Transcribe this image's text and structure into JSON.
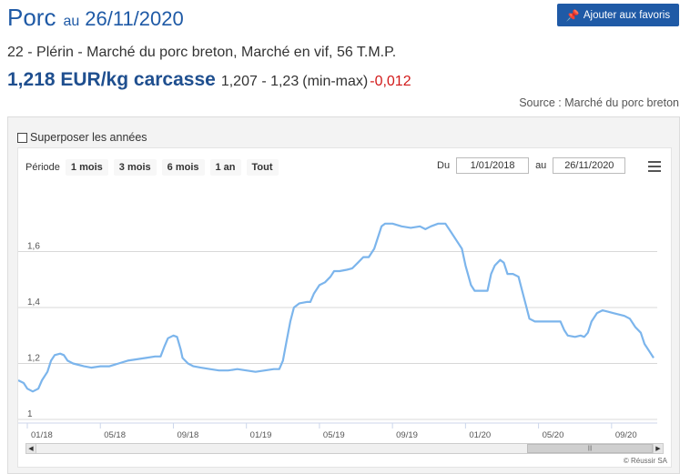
{
  "header": {
    "title": "Porc",
    "au": "au",
    "date": "26/11/2020",
    "fav_label": "Ajouter aux favoris",
    "fav_icon": "pin-icon"
  },
  "subtitle": "22 - Plérin - Marché du porc breton, Marché en vif, 56 T.M.P.",
  "price": {
    "main": "1,218 EUR/kg carcasse",
    "range": "1,207 - 1,23",
    "minmax": "(min-max)",
    "change": "-0,012",
    "change_color": "#d21a1a"
  },
  "source": "Source : Marché du porc breton",
  "chart_panel": {
    "overlay_label": "Superposer les années",
    "range_selector": {
      "label": "Période",
      "buttons": [
        "1 mois",
        "3 mois",
        "6 mois",
        "1 an",
        "Tout"
      ],
      "from_label": "Du",
      "from_value": "1/01/2018",
      "to_label": "au",
      "to_value": "26/11/2020"
    },
    "menu_icon": "hamburger-menu-icon",
    "credit": "© Réussir SA"
  },
  "chart_data": {
    "type": "line",
    "title": "",
    "xlabel": "",
    "ylabel": "",
    "line_color": "#7cb5ec",
    "grid": true,
    "ylim": [
      1.0,
      1.8
    ],
    "yticks": [
      {
        "value": 1.0,
        "label": "1"
      },
      {
        "value": 1.2,
        "label": "1,2"
      },
      {
        "value": 1.4,
        "label": "1,4"
      },
      {
        "value": 1.6,
        "label": "1,6"
      }
    ],
    "xlim": [
      0,
      35
    ],
    "xticks": [
      {
        "value": 0,
        "label": "01/18"
      },
      {
        "value": 4,
        "label": "05/18"
      },
      {
        "value": 8,
        "label": "09/18"
      },
      {
        "value": 12,
        "label": "01/19"
      },
      {
        "value": 16,
        "label": "05/19"
      },
      {
        "value": 20,
        "label": "09/19"
      },
      {
        "value": 24,
        "label": "01/20"
      },
      {
        "value": 28,
        "label": "05/20"
      },
      {
        "value": 32,
        "label": "09/20"
      }
    ],
    "x_unit": "months since 01/18",
    "points": [
      [
        0.0,
        1.14
      ],
      [
        0.3,
        1.13
      ],
      [
        0.5,
        1.11
      ],
      [
        0.8,
        1.1
      ],
      [
        1.1,
        1.11
      ],
      [
        1.3,
        1.14
      ],
      [
        1.6,
        1.17
      ],
      [
        1.8,
        1.21
      ],
      [
        2.0,
        1.23
      ],
      [
        2.3,
        1.235
      ],
      [
        2.5,
        1.23
      ],
      [
        2.7,
        1.21
      ],
      [
        3.0,
        1.2
      ],
      [
        3.3,
        1.195
      ],
      [
        3.6,
        1.19
      ],
      [
        4.0,
        1.185
      ],
      [
        4.5,
        1.19
      ],
      [
        5.0,
        1.19
      ],
      [
        5.5,
        1.2
      ],
      [
        6.0,
        1.21
      ],
      [
        6.5,
        1.215
      ],
      [
        7.0,
        1.22
      ],
      [
        7.5,
        1.225
      ],
      [
        7.8,
        1.225
      ],
      [
        8.0,
        1.26
      ],
      [
        8.2,
        1.29
      ],
      [
        8.5,
        1.3
      ],
      [
        8.7,
        1.295
      ],
      [
        8.9,
        1.25
      ],
      [
        9.0,
        1.22
      ],
      [
        9.3,
        1.2
      ],
      [
        9.6,
        1.19
      ],
      [
        10.0,
        1.185
      ],
      [
        10.5,
        1.18
      ],
      [
        11.0,
        1.175
      ],
      [
        11.5,
        1.175
      ],
      [
        12.0,
        1.18
      ],
      [
        12.5,
        1.175
      ],
      [
        13.0,
        1.17
      ],
      [
        13.5,
        1.175
      ],
      [
        14.0,
        1.18
      ],
      [
        14.3,
        1.18
      ],
      [
        14.5,
        1.21
      ],
      [
        14.7,
        1.28
      ],
      [
        14.9,
        1.35
      ],
      [
        15.1,
        1.4
      ],
      [
        15.4,
        1.415
      ],
      [
        15.8,
        1.42
      ],
      [
        16.0,
        1.42
      ],
      [
        16.2,
        1.45
      ],
      [
        16.5,
        1.48
      ],
      [
        16.8,
        1.49
      ],
      [
        17.1,
        1.51
      ],
      [
        17.3,
        1.53
      ],
      [
        17.6,
        1.53
      ],
      [
        18.0,
        1.535
      ],
      [
        18.3,
        1.54
      ],
      [
        18.6,
        1.56
      ],
      [
        18.9,
        1.58
      ],
      [
        19.2,
        1.58
      ],
      [
        19.5,
        1.61
      ],
      [
        19.7,
        1.65
      ],
      [
        19.9,
        1.69
      ],
      [
        20.1,
        1.7
      ],
      [
        20.5,
        1.7
      ],
      [
        21.0,
        1.69
      ],
      [
        21.5,
        1.685
      ],
      [
        22.0,
        1.69
      ],
      [
        22.3,
        1.68
      ],
      [
        22.6,
        1.69
      ],
      [
        23.0,
        1.7
      ],
      [
        23.4,
        1.7
      ],
      [
        23.7,
        1.67
      ],
      [
        24.0,
        1.64
      ],
      [
        24.3,
        1.61
      ],
      [
        24.5,
        1.55
      ],
      [
        24.8,
        1.48
      ],
      [
        25.0,
        1.46
      ],
      [
        25.4,
        1.46
      ],
      [
        25.7,
        1.46
      ],
      [
        25.9,
        1.52
      ],
      [
        26.1,
        1.55
      ],
      [
        26.4,
        1.57
      ],
      [
        26.6,
        1.56
      ],
      [
        26.8,
        1.52
      ],
      [
        27.1,
        1.52
      ],
      [
        27.4,
        1.51
      ],
      [
        27.6,
        1.46
      ],
      [
        27.8,
        1.41
      ],
      [
        28.0,
        1.36
      ],
      [
        28.3,
        1.35
      ],
      [
        28.7,
        1.35
      ],
      [
        29.0,
        1.35
      ],
      [
        29.4,
        1.35
      ],
      [
        29.7,
        1.35
      ],
      [
        29.9,
        1.32
      ],
      [
        30.1,
        1.3
      ],
      [
        30.5,
        1.295
      ],
      [
        30.8,
        1.3
      ],
      [
        31.0,
        1.295
      ],
      [
        31.2,
        1.31
      ],
      [
        31.4,
        1.35
      ],
      [
        31.7,
        1.38
      ],
      [
        32.0,
        1.39
      ],
      [
        32.3,
        1.385
      ],
      [
        32.6,
        1.38
      ],
      [
        32.9,
        1.375
      ],
      [
        33.2,
        1.37
      ],
      [
        33.5,
        1.36
      ],
      [
        33.8,
        1.33
      ],
      [
        34.1,
        1.31
      ],
      [
        34.3,
        1.27
      ],
      [
        34.6,
        1.24
      ],
      [
        34.8,
        1.22
      ]
    ]
  }
}
